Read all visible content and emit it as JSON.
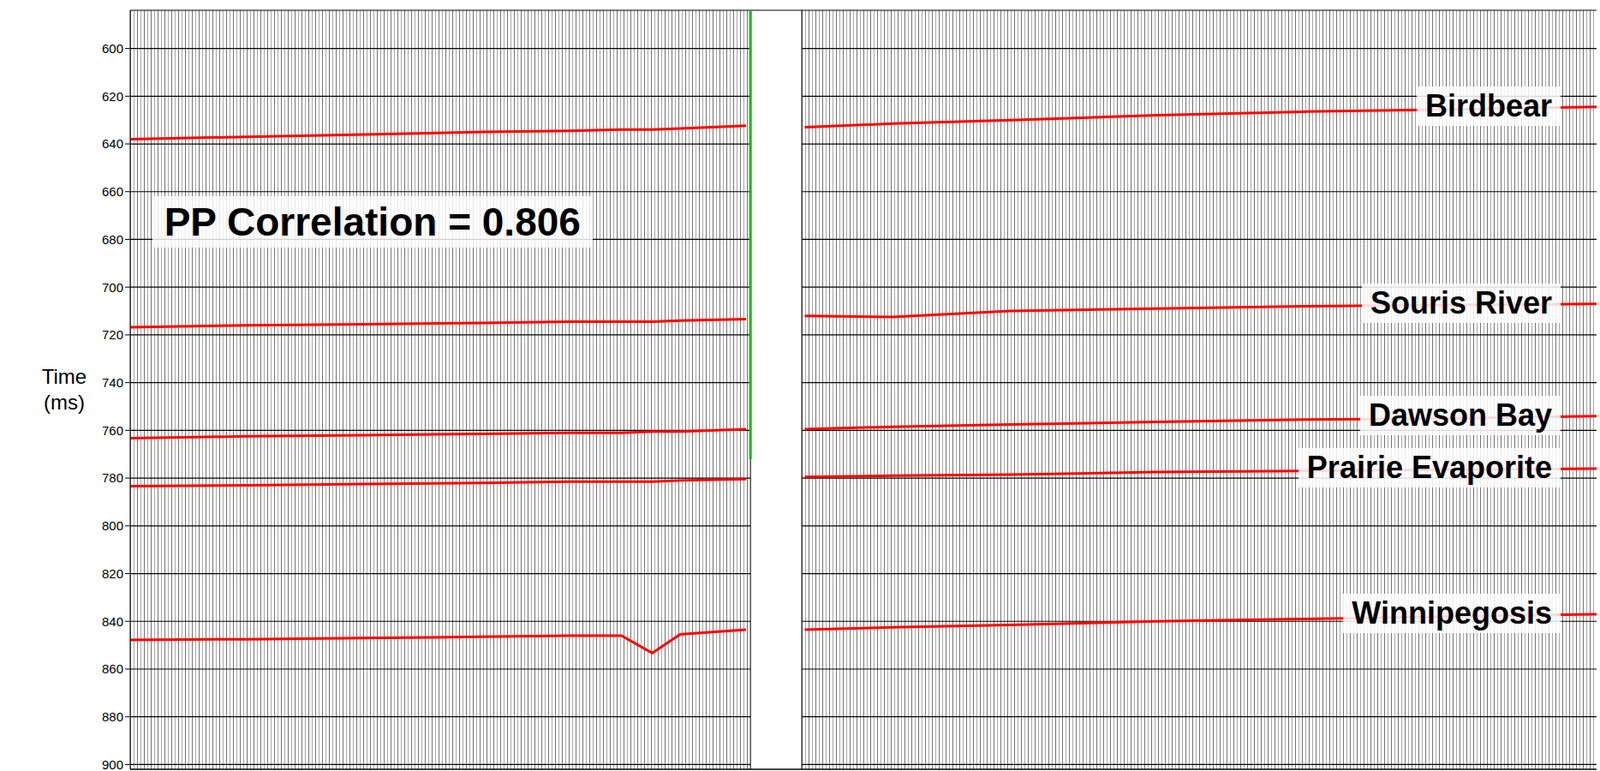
{
  "chart_data": {
    "type": "line",
    "annotation": "PP Correlation = 0.806",
    "y_label": "Time (ms)",
    "tick_labels": "y",
    "grid": true,
    "xlim": [
      0,
      100
    ],
    "ylim": [
      584,
      902
    ],
    "yticks": [
      600,
      620,
      640,
      660,
      680,
      700,
      720,
      740,
      760,
      780,
      800,
      820,
      840,
      860,
      880,
      900
    ],
    "x": [
      0,
      8,
      16,
      24,
      30,
      33.5,
      35.6,
      37.5,
      42,
      43.5,
      46,
      52,
      60,
      70,
      80,
      90,
      100
    ],
    "well": {
      "x": 42.3,
      "time_range": [
        584,
        772
      ],
      "color": "#00c000"
    },
    "synthetic_panel": [
      42.3,
      45.8
    ],
    "series": [
      {
        "name": "Birdbear",
        "color": "#ff0000",
        "values": [
          638,
          637,
          636,
          635,
          634.5,
          634,
          634,
          633.5,
          632.4,
          null,
          633,
          631.5,
          630,
          628,
          626.5,
          625.5,
          624.5
        ]
      },
      {
        "name": "Souris River",
        "color": "#ff0000",
        "values": [
          716.8,
          716,
          715.5,
          715,
          714.5,
          714.5,
          714.5,
          714,
          713.4,
          null,
          712,
          712.5,
          710,
          709,
          708,
          707.5,
          707
        ]
      },
      {
        "name": "Dawson Bay",
        "color": "#ff0000",
        "values": [
          763.3,
          762.5,
          762,
          761.5,
          761,
          761,
          760.5,
          760.5,
          759.5,
          null,
          759.5,
          758.5,
          757.5,
          756.5,
          755.5,
          755,
          754
        ]
      },
      {
        "name": "Prairie Evaporite",
        "color": "#ff0000",
        "values": [
          783.4,
          783,
          782.5,
          782,
          781.5,
          781.5,
          781.5,
          781,
          780.4,
          null,
          779.5,
          779,
          778.5,
          777.5,
          777,
          776.5,
          776
        ]
      },
      {
        "name": "Winnipegosis",
        "color": "#ff0000",
        "values": [
          847.8,
          847.5,
          847,
          846.5,
          846,
          846,
          853.3,
          845.5,
          843.5,
          null,
          843.5,
          842.5,
          841.5,
          840,
          839,
          838,
          837
        ]
      }
    ]
  }
}
